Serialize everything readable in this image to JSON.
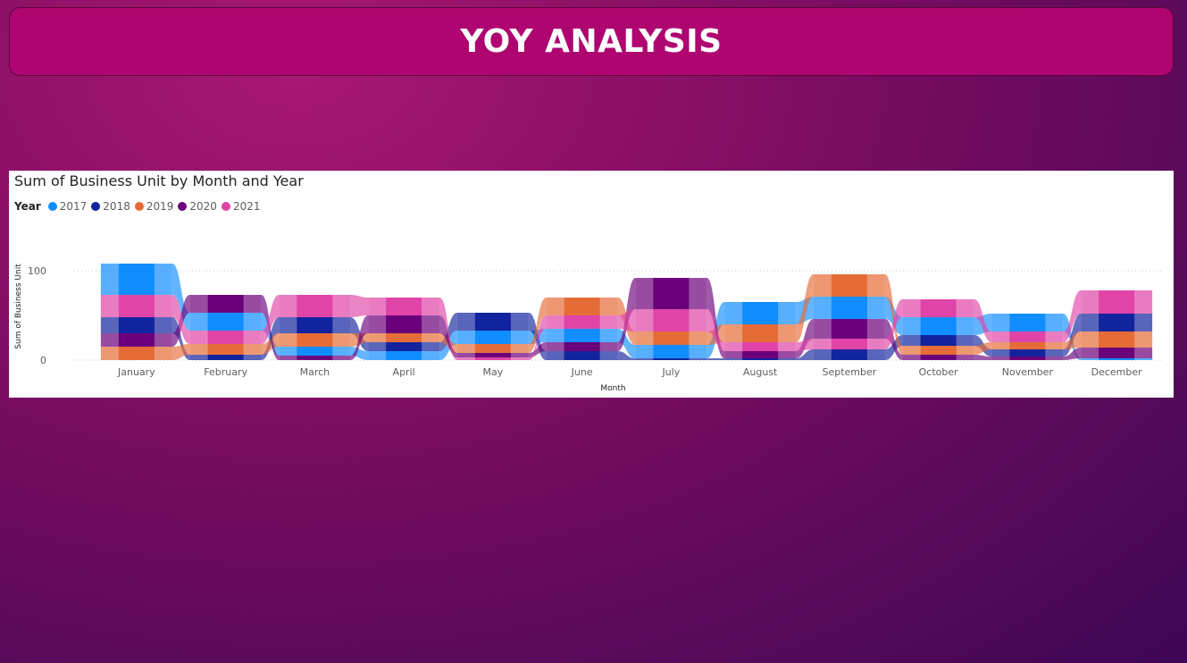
{
  "header": {
    "title": "YOY ANALYSIS"
  },
  "chart_data": {
    "type": "ribbon",
    "title": "Sum of Business Unit by Month and Year",
    "legend_title": "Year",
    "xlabel": "Month",
    "ylabel": "Sum of Business Unit",
    "ylim": [
      0,
      120
    ],
    "yticks": [
      0,
      100
    ],
    "grid": true,
    "legend_position": "top-left",
    "categories": [
      "January",
      "February",
      "March",
      "April",
      "May",
      "June",
      "July",
      "August",
      "September",
      "October",
      "November",
      "December"
    ],
    "series": [
      {
        "name": "2017",
        "color": "#118DFF",
        "values": [
          35,
          20,
          10,
          10,
          15,
          15,
          15,
          25,
          25,
          20,
          20,
          2
        ]
      },
      {
        "name": "2018",
        "color": "#12239E",
        "values": [
          18,
          6,
          18,
          10,
          20,
          10,
          2,
          2,
          12,
          12,
          8,
          20
        ]
      },
      {
        "name": "2019",
        "color": "#E66C37",
        "values": [
          15,
          12,
          15,
          10,
          10,
          20,
          15,
          20,
          25,
          10,
          8,
          18
        ]
      },
      {
        "name": "2020",
        "color": "#6B007B",
        "values": [
          15,
          20,
          5,
          20,
          5,
          10,
          35,
          8,
          22,
          6,
          4,
          12
        ]
      },
      {
        "name": "2021",
        "color": "#E044A7",
        "values": [
          25,
          15,
          25,
          20,
          3,
          15,
          25,
          10,
          12,
          20,
          12,
          26
        ]
      }
    ]
  }
}
